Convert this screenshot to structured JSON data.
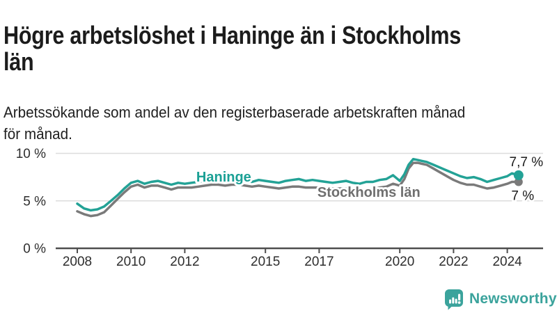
{
  "header": {
    "title": "Högre arbetslöshet i Haninge än i Stockholms län",
    "title_lines": [
      "Högre arbetslöshet i Haninge än i Stockholms",
      "län"
    ],
    "subtitle": "Arbetssökande som andel av den registerbaserade arbetskraften månad för månad.",
    "subtitle_lines": [
      "Arbetssökande som andel av den registerbaserade arbetskraften månad",
      "för månad."
    ]
  },
  "chart_data": {
    "type": "line",
    "title": "",
    "xlabel": "",
    "ylabel": "",
    "ylim": [
      0,
      10
    ],
    "xlim": [
      2007.2,
      2025.4
    ],
    "grid": "horizontal",
    "legend_position": "inline-labels",
    "y_ticks": [
      {
        "value": 0,
        "label": "0 %"
      },
      {
        "value": 5,
        "label": "5 %"
      },
      {
        "value": 10,
        "label": "10 %"
      }
    ],
    "x_ticks": [
      {
        "value": 2008,
        "label": "2008"
      },
      {
        "value": 2010,
        "label": "2010"
      },
      {
        "value": 2012,
        "label": "2012"
      },
      {
        "value": 2015,
        "label": "2015"
      },
      {
        "value": 2017,
        "label": "2017"
      },
      {
        "value": 2020,
        "label": "2020"
      },
      {
        "value": 2022,
        "label": "2022"
      },
      {
        "value": 2024,
        "label": "2024"
      }
    ],
    "x": [
      2008.0,
      2008.25,
      2008.5,
      2008.75,
      2009.0,
      2009.25,
      2009.5,
      2009.75,
      2010.0,
      2010.25,
      2010.5,
      2010.75,
      2011.0,
      2011.25,
      2011.5,
      2011.75,
      2012.0,
      2012.25,
      2012.5,
      2012.75,
      2013.0,
      2013.25,
      2013.5,
      2013.75,
      2014.0,
      2014.25,
      2014.5,
      2014.75,
      2015.0,
      2015.25,
      2015.5,
      2015.75,
      2016.0,
      2016.25,
      2016.5,
      2016.75,
      2017.0,
      2017.25,
      2017.5,
      2017.75,
      2018.0,
      2018.25,
      2018.5,
      2018.75,
      2019.0,
      2019.25,
      2019.5,
      2019.75,
      2020.0,
      2020.17,
      2020.33,
      2020.5,
      2020.67,
      2020.83,
      2021.0,
      2021.25,
      2021.5,
      2021.75,
      2022.0,
      2022.25,
      2022.5,
      2022.75,
      2023.0,
      2023.25,
      2023.5,
      2023.75,
      2024.0,
      2024.17,
      2024.42
    ],
    "series": [
      {
        "name": "Stockholms län",
        "color": "#7a7a7a",
        "label_color": "#6f6f6f",
        "end_label": "7 %",
        "end_value": 7.0,
        "label_at": {
          "x": 2018.85,
          "y": 5.42
        },
        "values": [
          3.9,
          3.6,
          3.4,
          3.5,
          3.8,
          4.5,
          5.2,
          5.9,
          6.5,
          6.7,
          6.4,
          6.6,
          6.6,
          6.4,
          6.2,
          6.4,
          6.4,
          6.4,
          6.5,
          6.6,
          6.7,
          6.7,
          6.6,
          6.7,
          6.7,
          6.6,
          6.5,
          6.6,
          6.5,
          6.4,
          6.3,
          6.4,
          6.5,
          6.5,
          6.4,
          6.4,
          6.4,
          6.3,
          6.3,
          6.3,
          6.3,
          6.2,
          6.1,
          6.2,
          6.2,
          6.4,
          6.5,
          6.8,
          6.6,
          7.3,
          8.4,
          9.0,
          9.0,
          8.9,
          8.8,
          8.4,
          8.0,
          7.6,
          7.2,
          6.9,
          6.7,
          6.7,
          6.5,
          6.3,
          6.4,
          6.6,
          6.8,
          7.0,
          7.0
        ]
      },
      {
        "name": "Haninge",
        "color": "#23a296",
        "label_color": "#1aa095",
        "end_label": "7,7 %",
        "end_value": 7.7,
        "label_at": {
          "x": 2013.45,
          "y": 7.05
        },
        "values": [
          4.7,
          4.2,
          4.0,
          4.1,
          4.4,
          5.0,
          5.6,
          6.3,
          6.9,
          7.1,
          6.8,
          7.0,
          7.1,
          6.9,
          6.7,
          6.9,
          6.8,
          6.9,
          7.0,
          7.1,
          7.2,
          7.3,
          7.1,
          7.3,
          7.3,
          7.1,
          7.0,
          7.2,
          7.1,
          7.0,
          6.9,
          7.1,
          7.2,
          7.3,
          7.1,
          7.2,
          7.1,
          7.0,
          6.9,
          7.0,
          7.1,
          6.9,
          6.8,
          7.0,
          7.0,
          7.2,
          7.3,
          7.7,
          7.1,
          7.8,
          8.8,
          9.4,
          9.3,
          9.2,
          9.1,
          8.8,
          8.5,
          8.2,
          7.9,
          7.6,
          7.4,
          7.5,
          7.3,
          7.0,
          7.2,
          7.4,
          7.6,
          7.9,
          7.7
        ]
      }
    ]
  },
  "footer": {
    "brand": "Newsworthy",
    "brand_color": "#3ba39c",
    "logo_icon": "bar-chart-speech-bubble-icon"
  }
}
